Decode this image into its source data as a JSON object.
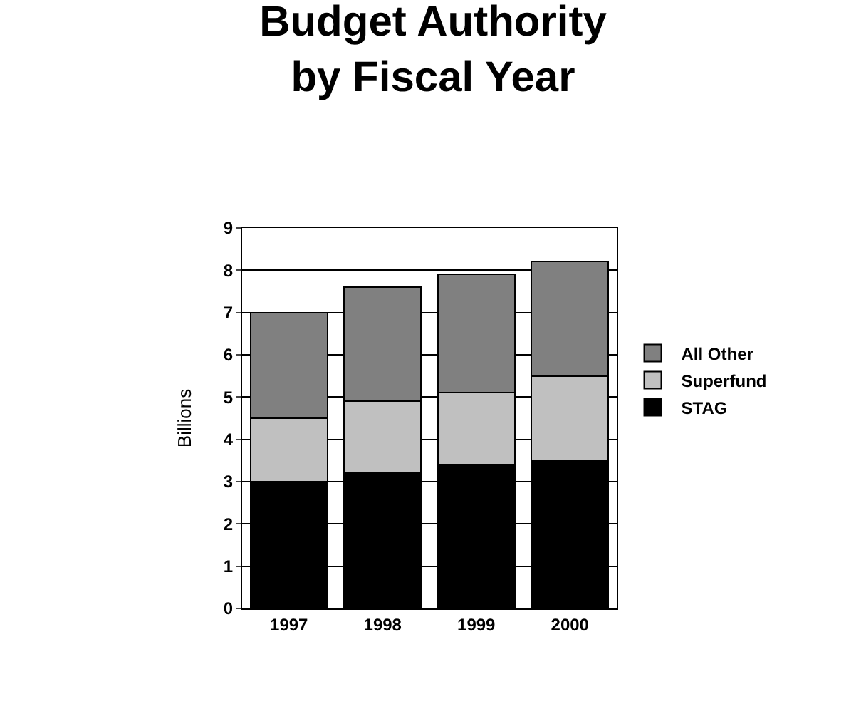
{
  "chart_data": {
    "type": "bar",
    "title": "Budget Authority\nby Fiscal Year",
    "ylabel": "Billions",
    "categories": [
      "1997",
      "1998",
      "1999",
      "2000"
    ],
    "stacked": true,
    "series": [
      {
        "name": "STAG",
        "color": "#000000",
        "values": [
          3.0,
          3.2,
          3.4,
          3.5
        ]
      },
      {
        "name": "Superfund",
        "color": "#c0c0c0",
        "values": [
          1.5,
          1.7,
          1.7,
          2.0
        ]
      },
      {
        "name": "All Other",
        "color": "#808080",
        "values": [
          2.5,
          2.7,
          2.8,
          2.7
        ]
      }
    ],
    "ylim": [
      0,
      9
    ],
    "yticks": [
      0,
      1,
      2,
      3,
      4,
      5,
      6,
      7,
      8,
      9
    ],
    "grid": "y",
    "legend": "right"
  }
}
